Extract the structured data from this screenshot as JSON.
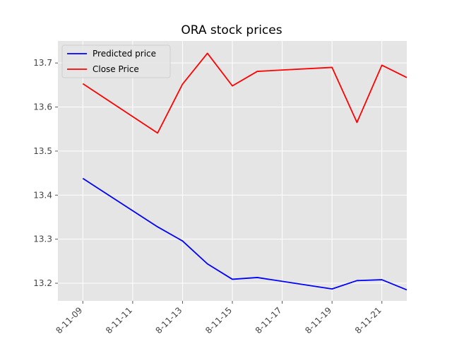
{
  "chart_data": {
    "type": "line",
    "title": "ORA stock prices",
    "xlabel": "",
    "ylabel": "",
    "x": [
      "2018-11-09",
      "2018-11-12",
      "2018-11-13",
      "2018-11-14",
      "2018-11-15",
      "2018-11-16",
      "2018-11-19",
      "2018-11-20",
      "2018-11-21",
      "2018-11-22"
    ],
    "x_ticks": [
      "2018-11-09",
      "2018-11-11",
      "2018-11-13",
      "2018-11-15",
      "2018-11-17",
      "2018-11-19",
      "2018-11-21"
    ],
    "x_tick_labels": [
      "8-11-09",
      "8-11-11",
      "8-11-13",
      "8-11-15",
      "8-11-17",
      "8-11-19",
      "8-11-21"
    ],
    "xlim": [
      "2018-11-08",
      "2018-11-22"
    ],
    "ylim": [
      13.16,
      13.75
    ],
    "y_ticks": [
      13.2,
      13.3,
      13.4,
      13.5,
      13.6,
      13.7
    ],
    "y_tick_labels": [
      "13.2",
      "13.3",
      "13.4",
      "13.5",
      "13.6",
      "13.7"
    ],
    "grid": true,
    "legend_position": "top-left",
    "series": [
      {
        "name": "Predicted price",
        "color": "#0000ff",
        "values": [
          13.438,
          13.328,
          13.296,
          13.244,
          13.209,
          13.213,
          13.187,
          13.206,
          13.208,
          13.185
        ]
      },
      {
        "name": "Close Price",
        "color": "#ff0000",
        "values": [
          13.653,
          13.541,
          13.652,
          13.722,
          13.648,
          13.681,
          13.69,
          13.565,
          13.695,
          13.667
        ]
      }
    ]
  }
}
